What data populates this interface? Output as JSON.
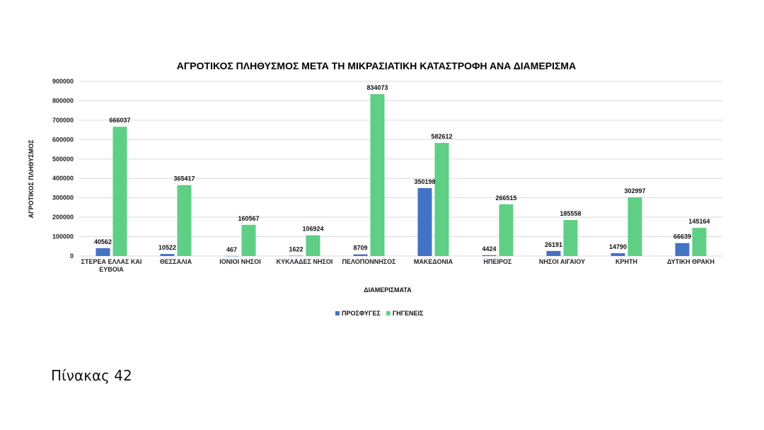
{
  "chart_data": {
    "type": "bar",
    "title": "ΑΓΡΟΤΙΚΟΣ ΠΛΗΘΥΣΜΟΣ ΜΕΤΑ ΤΗ ΜΙΚΡΑΣΙΑΤΙΚΗ ΚΑΤΑΣΤΡΟΦΗ ΑΝΑ ΔΙΑΜΕΡΙΣΜΑ",
    "xlabel": "ΔΙΑΜΕΡΙΣΜΑΤΑ",
    "ylabel": "ΑΓΡΟΤΙΚΟΣ ΠΛΗΘΥΣΜΟΣ",
    "ylim": [
      0,
      900000
    ],
    "yticks": [
      "0",
      "100000",
      "200000",
      "300000",
      "400000",
      "500000",
      "600000",
      "700000",
      "800000",
      "900000"
    ],
    "categories": [
      [
        "ΣΤΕΡΕΑ ΕΛΛΑΣ ΚΑΙ",
        "ΕΥΒΟΙΑ"
      ],
      [
        "ΘΕΣΣΑΛΙΑ"
      ],
      [
        "ΙΟΝΙΟΙ ΝΗΣΟΙ"
      ],
      [
        "ΚΥΚΛΑΔΕΣ ΝΗΣΟΙ"
      ],
      [
        "ΠΕΛΟΠΟΝΝΗΣΟΣ"
      ],
      [
        "ΜΑΚΕΔΟΝΙΑ"
      ],
      [
        "ΗΠΕΙΡΟΣ"
      ],
      [
        "ΝΗΣΟΙ ΑΙΓΑΙΟΥ"
      ],
      [
        "ΚΡΗΤΗ"
      ],
      [
        "ΔΥΤΙΚΗ ΘΡΑΚΗ"
      ]
    ],
    "series": [
      {
        "name": "ΠΡΟΣΦΥΓΕΣ",
        "color": "#4472c4",
        "values": [
          40562,
          10522,
          467,
          1622,
          8709,
          350198,
          4424,
          26191,
          14790,
          66639
        ]
      },
      {
        "name": "ΓΗΓΕΝΕΙΣ",
        "color": "#5fcf86",
        "values": [
          666037,
          365417,
          160567,
          106924,
          834073,
          582612,
          266515,
          185558,
          302997,
          145164
        ]
      }
    ],
    "grid": true,
    "legend": "bottom"
  },
  "caption": "Πίνακας 42"
}
